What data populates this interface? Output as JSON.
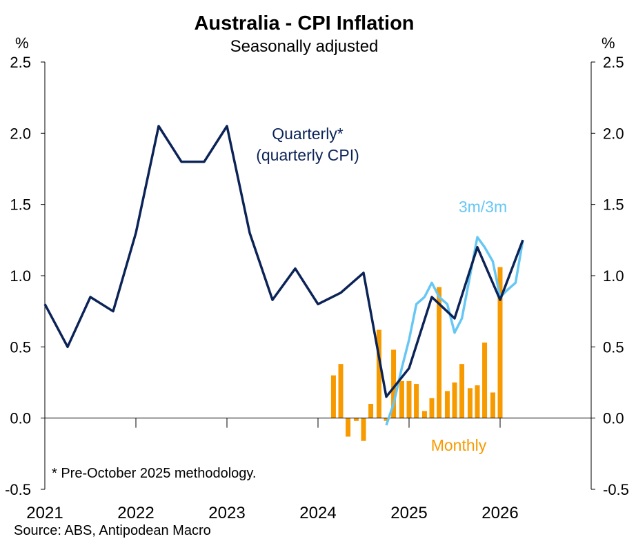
{
  "chart_data": {
    "type": "line-bar combo",
    "title": "Australia - CPI Inflation",
    "subtitle": "Seasonally adjusted",
    "ylabel_left": "%",
    "ylabel_right": "%",
    "ylim": [
      -0.5,
      2.5
    ],
    "yticks": [
      "2.5",
      "2.0",
      "1.5",
      "1.0",
      "0.5",
      "0.0",
      "-0.5"
    ],
    "ytick_values": [
      2.5,
      2.0,
      1.5,
      1.0,
      0.5,
      0.0,
      -0.5
    ],
    "xlim": [
      2021.0,
      2027.0
    ],
    "xtick_labels": [
      "2021",
      "2022",
      "2023",
      "2024",
      "2025",
      "2026"
    ],
    "xtick_values": [
      2021,
      2022,
      2023,
      2024,
      2025,
      2026
    ],
    "annotations": {
      "quarterly_line1": "Quarterly*",
      "quarterly_line2": "(quarterly CPI)",
      "three_month": "3m/3m",
      "monthly": "Monthly",
      "footnote": "* Pre-October 2025 methodology."
    },
    "source": "Source: ABS, Antipodean Macro",
    "colors": {
      "quarterly": "#0b2357",
      "three_month": "#66c7f4",
      "monthly": "#f79a00",
      "axis": "#000000"
    },
    "series": [
      {
        "name": "Quarterly",
        "type": "line",
        "x": [
          2021.0,
          2021.25,
          2021.5,
          2021.75,
          2022.0,
          2022.25,
          2022.5,
          2022.75,
          2023.0,
          2023.25,
          2023.5,
          2023.75,
          2024.0,
          2024.25,
          2024.5,
          2024.75,
          2025.0,
          2025.25,
          2025.5,
          2025.75,
          2026.0,
          2026.25
        ],
        "values": [
          0.8,
          0.5,
          0.85,
          0.75,
          1.3,
          2.05,
          1.8,
          1.8,
          2.05,
          1.3,
          0.83,
          1.05,
          0.8,
          0.88,
          1.02,
          0.15,
          0.35,
          0.85,
          0.7,
          1.2,
          0.83,
          1.25
        ]
      },
      {
        "name": "3m/3m",
        "type": "line",
        "x": [
          2024.75,
          2024.83,
          2024.92,
          2025.0,
          2025.08,
          2025.17,
          2025.25,
          2025.33,
          2025.42,
          2025.5,
          2025.58,
          2025.67,
          2025.75,
          2025.83,
          2025.92,
          2026.0,
          2026.08,
          2026.17,
          2026.25
        ],
        "values": [
          -0.05,
          0.1,
          0.35,
          0.55,
          0.8,
          0.85,
          0.95,
          0.85,
          0.8,
          0.6,
          0.7,
          1.0,
          1.27,
          1.2,
          1.1,
          0.85,
          0.9,
          0.95,
          1.25
        ]
      },
      {
        "name": "Monthly",
        "type": "bar",
        "x": [
          2024.17,
          2024.25,
          2024.33,
          2024.42,
          2024.5,
          2024.58,
          2024.67,
          2024.75,
          2024.83,
          2024.92,
          2025.0,
          2025.08,
          2025.17,
          2025.25,
          2025.33,
          2025.42,
          2025.5,
          2025.58,
          2025.67,
          2025.75,
          2025.83,
          2025.92,
          2026.0,
          2026.08,
          2026.17,
          2026.25
        ],
        "values": [
          0.3,
          0.38,
          -0.13,
          -0.02,
          -0.16,
          0.1,
          0.62,
          -0.02,
          0.48,
          0.26,
          0.26,
          0.24,
          0.05,
          0.14,
          0.92,
          0.19,
          0.25,
          0.38,
          0.21,
          0.23,
          0.53,
          0.18,
          1.06,
          0.0,
          0.0,
          0.0
        ]
      }
    ]
  }
}
